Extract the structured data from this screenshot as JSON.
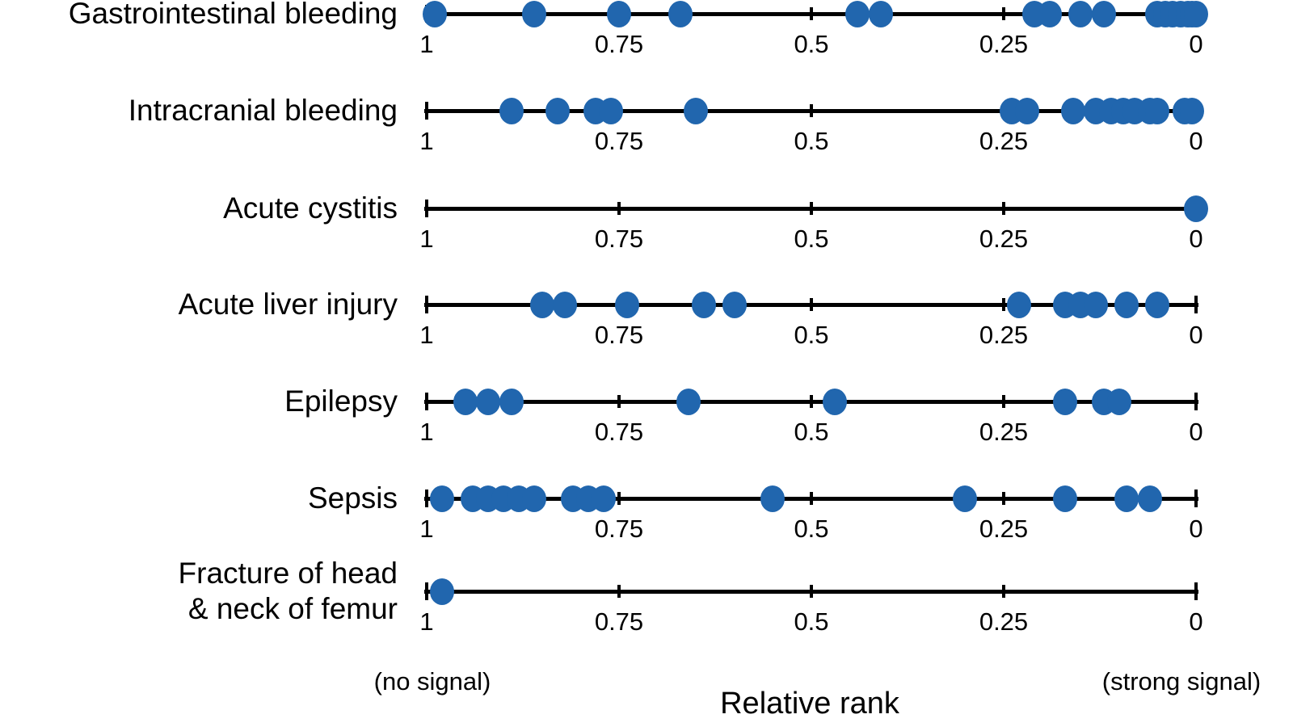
{
  "chart_data": {
    "type": "scatter",
    "subtype": "one-dimensional strip plot, one axis per category row",
    "xlabel": "Relative rank",
    "xlim": [
      1,
      0
    ],
    "axis_direction": "reversed: 1 on the left, 0 on the right",
    "grid": false,
    "ticks": [
      {
        "value": 1,
        "label": "1"
      },
      {
        "value": 0.75,
        "label": "0.75"
      },
      {
        "value": 0.5,
        "label": "0.5"
      },
      {
        "value": 0.25,
        "label": "0.25"
      },
      {
        "value": 0,
        "label": "0"
      }
    ],
    "annotations": {
      "left": "(no signal)",
      "right": "(strong signal)"
    },
    "rows": [
      {
        "label": "Gastrointestinal bleeding",
        "values": [
          0.99,
          0.86,
          0.75,
          0.67,
          0.44,
          0.41,
          0.21,
          0.19,
          0.15,
          0.12,
          0.05,
          0.04,
          0.03,
          0.02,
          0.01,
          0.005,
          0.0
        ]
      },
      {
        "label": "Intracranial bleeding",
        "values": [
          0.89,
          0.83,
          0.78,
          0.76,
          0.65,
          0.24,
          0.22,
          0.16,
          0.13,
          0.11,
          0.095,
          0.08,
          0.06,
          0.05,
          0.015,
          0.005
        ]
      },
      {
        "label": "Acute cystitis",
        "values": [
          0.0
        ]
      },
      {
        "label": "Acute liver injury",
        "values": [
          0.85,
          0.82,
          0.74,
          0.64,
          0.6,
          0.23,
          0.17,
          0.15,
          0.13,
          0.09,
          0.05
        ]
      },
      {
        "label": "Epilepsy",
        "values": [
          0.95,
          0.92,
          0.89,
          0.66,
          0.47,
          0.17,
          0.12,
          0.1
        ]
      },
      {
        "label": "Sepsis",
        "values": [
          0.98,
          0.94,
          0.92,
          0.9,
          0.88,
          0.86,
          0.81,
          0.79,
          0.77,
          0.55,
          0.3,
          0.17,
          0.09,
          0.06
        ]
      },
      {
        "label": "Fracture of head & neck of femur",
        "label_lines": [
          "Fracture of head",
          "& neck of femur"
        ],
        "values": [
          0.98
        ]
      }
    ],
    "colors": {
      "dot": "#2166ae",
      "axis": "#000000",
      "text": "#000000",
      "background": "#ffffff"
    }
  }
}
